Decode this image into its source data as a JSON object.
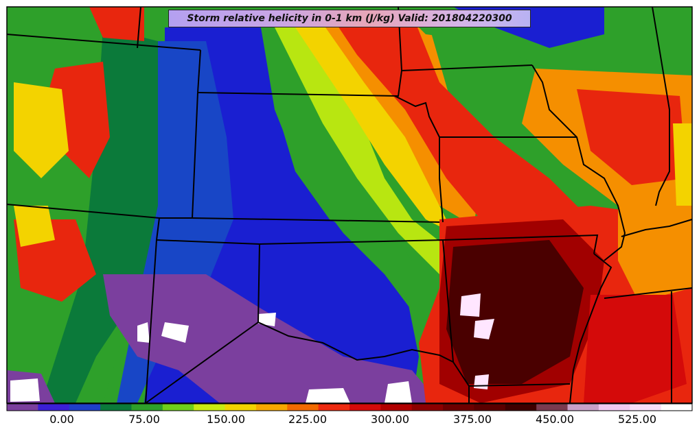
{
  "title": "Storm relative helicity in 0-1 km (J/kg) Valid: 201804220300",
  "colorbar": {
    "tick_labels": [
      "0.00",
      "75.00",
      "150.00",
      "225.00",
      "300.00",
      "375.00",
      "450.00",
      "525.00"
    ],
    "colors": [
      "#7b3f9e",
      "#3b1fd6",
      "#1f3fc8",
      "#0b7a3a",
      "#2ea02a",
      "#6fcf1a",
      "#c9ea12",
      "#f3d300",
      "#f7a800",
      "#f26a00",
      "#ee2a10",
      "#d40a0a",
      "#b10000",
      "#8c0000",
      "#6d0000",
      "#5a0000",
      "#3e0000",
      "#7a3b50",
      "#c9a0c8",
      "#f0c8f0",
      "#f8dff8",
      "#ffffff"
    ]
  },
  "palette": {
    "purple": "#7b3f9e",
    "blue": "#1a1fd1",
    "blue2": "#1846c6",
    "darkgreen": "#0b7a3a",
    "green": "#2ea02a",
    "lime": "#b8e611",
    "yellow": "#f3d300",
    "orange": "#f58f00",
    "red": "#e8260e",
    "darkred": "#a10000",
    "maroon": "#4a0000",
    "white": "#ffffff"
  }
}
